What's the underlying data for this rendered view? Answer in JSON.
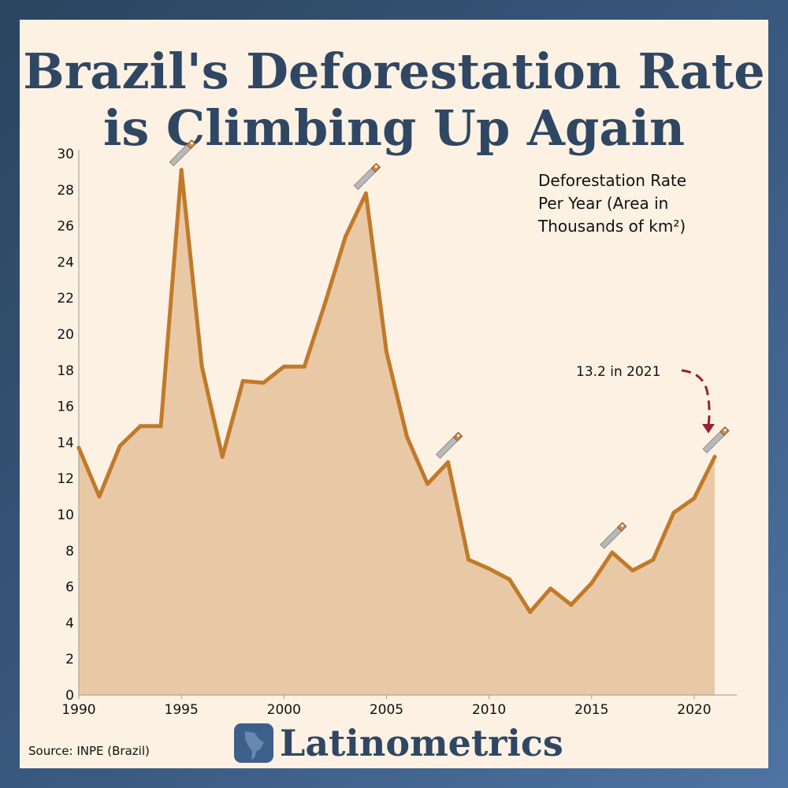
{
  "title_lines": [
    "Brazil's Deforestation Rate",
    "is Climbing Up Again"
  ],
  "legend_lines": [
    "Deforestation Rate",
    "Per Year (Area in",
    "Thousands of km²)"
  ],
  "annotation": "13.2 in 2021",
  "source": "Source: INPE (Brazil)",
  "brand": "Latinometrics",
  "colors": {
    "line": "#c17a2a",
    "fill": "#e9c9a5",
    "background": "#fdf1e4",
    "title": "#2f4763",
    "arrow": "#9a1f33"
  },
  "icons": {
    "peak_marker": "saw-icon",
    "logo": "latin-america-map-icon"
  },
  "chart_data": {
    "type": "area",
    "title": "Brazil's Deforestation Rate is Climbing Up Again",
    "series": [
      {
        "name": "Deforestation Rate Per Year (Area in Thousands of km²)",
        "x": [
          1990,
          1991,
          1992,
          1993,
          1994,
          1995,
          1996,
          1997,
          1998,
          1999,
          2000,
          2001,
          2002,
          2003,
          2004,
          2005,
          2006,
          2007,
          2008,
          2009,
          2010,
          2011,
          2012,
          2013,
          2014,
          2015,
          2016,
          2017,
          2018,
          2019,
          2020,
          2021
        ],
        "values": [
          13.7,
          11.0,
          13.8,
          14.9,
          14.9,
          29.1,
          18.2,
          13.2,
          17.4,
          17.3,
          18.2,
          18.2,
          21.7,
          25.4,
          27.8,
          19.0,
          14.3,
          11.7,
          12.9,
          7.5,
          7.0,
          6.4,
          4.6,
          5.9,
          5.0,
          6.2,
          7.9,
          6.9,
          7.5,
          10.1,
          10.9,
          13.2
        ]
      }
    ],
    "xlim": [
      1990,
      2022
    ],
    "ylim": [
      0,
      30
    ],
    "xticks": [
      1990,
      1995,
      2000,
      2005,
      2010,
      2015,
      2020
    ],
    "yticks": [
      0,
      2,
      4,
      6,
      8,
      10,
      12,
      14,
      16,
      18,
      20,
      22,
      24,
      26,
      28,
      30
    ],
    "marker_years": [
      1995,
      2004,
      2008,
      2016,
      2021
    ],
    "grid": false
  }
}
